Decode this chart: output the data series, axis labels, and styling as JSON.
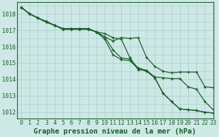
{
  "background_color": "#cde8e5",
  "grid_color": "#a8ccca",
  "line_color": "#1a5c2a",
  "xlabel": "Graphe pression niveau de la mer (hPa)",
  "xlabel_fontsize": 7.5,
  "tick_fontsize": 6.0,
  "xlim": [
    -0.5,
    23
  ],
  "ylim": [
    1011.6,
    1018.7
  ],
  "yticks": [
    1012,
    1013,
    1014,
    1015,
    1016,
    1017,
    1018
  ],
  "xticks": [
    0,
    1,
    2,
    3,
    4,
    5,
    6,
    7,
    8,
    9,
    10,
    11,
    12,
    13,
    14,
    15,
    16,
    17,
    18,
    19,
    20,
    21,
    22,
    23
  ],
  "lines": [
    [
      1018.4,
      1018.0,
      1017.75,
      1017.5,
      1017.3,
      1017.05,
      1017.05,
      1017.05,
      1017.05,
      1016.9,
      1016.6,
      1016.35,
      1016.55,
      1016.5,
      1016.55,
      1015.35,
      1014.8,
      1014.5,
      1014.4,
      1014.45,
      1014.45,
      1014.45,
      1013.55,
      1013.5
    ],
    [
      1018.4,
      1018.0,
      1017.75,
      1017.5,
      1017.3,
      1017.1,
      1017.1,
      1017.1,
      1017.1,
      1016.9,
      1016.6,
      1015.8,
      1015.3,
      1015.25,
      1014.7,
      1014.55,
      1014.15,
      1014.1,
      1014.05,
      1014.05,
      1013.55,
      1013.4,
      1012.65,
      1012.15
    ],
    [
      1018.4,
      1018.0,
      1017.75,
      1017.5,
      1017.3,
      1017.1,
      1017.1,
      1017.1,
      1017.1,
      1016.9,
      1016.45,
      1015.5,
      1015.2,
      1015.15,
      1014.65,
      1014.5,
      1014.1,
      1013.15,
      1012.65,
      1012.2,
      1012.15,
      1012.1,
      1012.0,
      1011.95
    ],
    [
      1018.4,
      1018.0,
      1017.75,
      1017.55,
      1017.3,
      1017.1,
      1017.1,
      1017.1,
      1017.1,
      1016.9,
      1016.8,
      1016.55,
      1016.45,
      1015.35,
      1014.6,
      1014.55,
      1014.1,
      1013.15,
      1012.65,
      1012.2,
      1012.15,
      1012.1,
      1012.0,
      1011.95
    ]
  ]
}
